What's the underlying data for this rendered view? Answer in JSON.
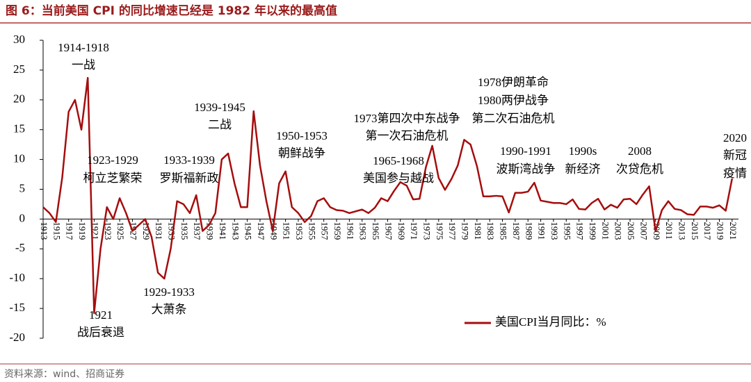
{
  "chart_data": {
    "type": "line",
    "title": "图 6：当前美国 CPI 的同比增速已经是 1982 年以来的最高值",
    "source": "资料来源：wind、招商证券",
    "x": [
      1913,
      1914,
      1915,
      1916,
      1917,
      1918,
      1919,
      1920,
      1921,
      1922,
      1923,
      1924,
      1925,
      1926,
      1927,
      1928,
      1929,
      1930,
      1931,
      1932,
      1933,
      1934,
      1935,
      1936,
      1937,
      1938,
      1939,
      1940,
      1941,
      1942,
      1943,
      1944,
      1945,
      1946,
      1947,
      1948,
      1949,
      1950,
      1951,
      1952,
      1953,
      1954,
      1955,
      1956,
      1957,
      1958,
      1959,
      1960,
      1961,
      1962,
      1963,
      1964,
      1965,
      1966,
      1967,
      1968,
      1969,
      1970,
      1971,
      1972,
      1973,
      1974,
      1975,
      1976,
      1977,
      1978,
      1979,
      1980,
      1981,
      1982,
      1983,
      1984,
      1985,
      1986,
      1987,
      1988,
      1989,
      1990,
      1991,
      1992,
      1993,
      1994,
      1995,
      1996,
      1997,
      1998,
      1999,
      2000,
      2001,
      2002,
      2003,
      2004,
      2005,
      2006,
      2007,
      2008,
      2009,
      2010,
      2011,
      2012,
      2013,
      2014,
      2015,
      2016,
      2017,
      2018,
      2019,
      2020,
      2021
    ],
    "series": [
      {
        "name": "美国CPI当月同比：%",
        "color": "#a50d0d",
        "values": [
          2,
          1,
          -0.5,
          7,
          18,
          20,
          15,
          23.7,
          -15.8,
          -5,
          2,
          0,
          3.5,
          1,
          -2,
          -1,
          0,
          -3,
          -9,
          -10,
          -5,
          3,
          2.5,
          1,
          4,
          -2,
          -1,
          1,
          10,
          11,
          6,
          2,
          2,
          18.1,
          9,
          3,
          -2,
          6,
          8,
          2,
          1,
          -0.5,
          0.5,
          3,
          3.5,
          2,
          1.5,
          1.4,
          1,
          1.3,
          1.6,
          1,
          1.9,
          3.5,
          3,
          4.7,
          6.2,
          5.6,
          3.3,
          3.4,
          8.7,
          12.3,
          6.9,
          4.9,
          6.7,
          9,
          13.3,
          12.5,
          8.9,
          3.8,
          3.8,
          3.9,
          3.8,
          1.1,
          4.4,
          4.4,
          4.6,
          6.1,
          3.1,
          2.9,
          2.7,
          2.7,
          2.5,
          3.3,
          1.7,
          1.6,
          2.7,
          3.4,
          1.6,
          2.4,
          1.9,
          3.3,
          3.4,
          2.5,
          4.1,
          5.5,
          -2,
          1.5,
          3,
          1.7,
          1.5,
          0.8,
          0.7,
          2.1,
          2.1,
          1.9,
          2.3,
          1.4,
          6.8
        ]
      }
    ],
    "xlim": [
      1913,
      2022
    ],
    "xticks": [
      1913,
      1915,
      1917,
      1919,
      1921,
      1923,
      1925,
      1927,
      1929,
      1931,
      1933,
      1935,
      1937,
      1939,
      1941,
      1943,
      1945,
      1947,
      1949,
      1951,
      1953,
      1955,
      1957,
      1959,
      1961,
      1963,
      1965,
      1967,
      1969,
      1971,
      1973,
      1975,
      1977,
      1979,
      1981,
      1983,
      1985,
      1987,
      1989,
      1991,
      1993,
      1995,
      1997,
      1999,
      2001,
      2003,
      2005,
      2007,
      2009,
      2011,
      2013,
      2015,
      2017,
      2019,
      2021
    ],
    "ylim": [
      -20,
      30
    ],
    "yticks": [
      30,
      25,
      20,
      15,
      10,
      5,
      0,
      -5,
      -10,
      -15,
      -20
    ],
    "annotations": [
      "1914-1918",
      "一战",
      "1923-1929",
      "柯立芝繁荣",
      "1933-1939",
      "罗斯福新政",
      "1939-1945",
      "二战",
      "1950-1953",
      "朝鲜战争",
      "1965-1968",
      "美国参与越战",
      "1973第四次中东战争",
      "第一次石油危机",
      "1978伊朗革命",
      "1980两伊战争",
      "第二次石油危机",
      "1990-1991",
      "波斯湾战争",
      "1990s",
      "新经济",
      "2008",
      "次贷危机",
      "2020",
      "新冠",
      "疫情",
      "1921",
      "战后衰退",
      "1929-1933",
      "大萧条"
    ]
  }
}
